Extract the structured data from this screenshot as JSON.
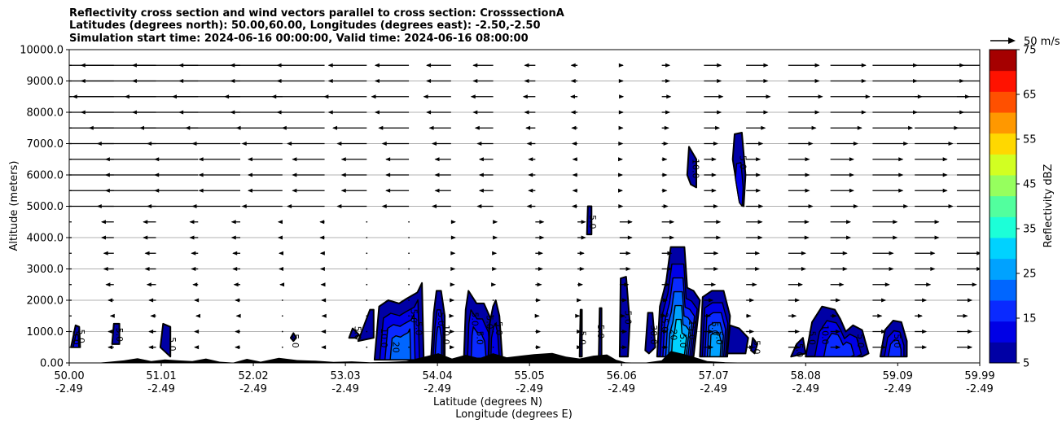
{
  "title_lines": [
    "Reflectivity cross section and wind vectors parallel to cross section: CrosssectionA",
    "Latitudes (degrees north): 50.00,60.00, Longitudes (degrees east): -2.50,-2.50",
    "Simulation start time: 2024-06-16 00:00:00, Valid time: 2024-06-16 08:00:00"
  ],
  "chart_data": {
    "type": "heatmap",
    "xlabel": "Latitude (degrees N)",
    "xlabel2": "Longitude (degrees E)",
    "ylabel": "Altitude (meters)",
    "xlim": [
      50.0,
      59.99
    ],
    "ylim": [
      0,
      10000
    ],
    "grid": "horizontal",
    "x_ticks": [
      {
        "lat": 50.0,
        "lat_label": "50.00",
        "lon_label": "-2.49"
      },
      {
        "lat": 51.01,
        "lat_label": "51.01",
        "lon_label": "-2.49"
      },
      {
        "lat": 52.02,
        "lat_label": "52.02",
        "lon_label": "-2.49"
      },
      {
        "lat": 53.03,
        "lat_label": "53.03",
        "lon_label": "-2.49"
      },
      {
        "lat": 54.04,
        "lat_label": "54.04",
        "lon_label": "-2.49"
      },
      {
        "lat": 55.05,
        "lat_label": "55.05",
        "lon_label": "-2.49"
      },
      {
        "lat": 56.06,
        "lat_label": "56.06",
        "lon_label": "-2.49"
      },
      {
        "lat": 57.07,
        "lat_label": "57.07",
        "lon_label": "-2.49"
      },
      {
        "lat": 58.08,
        "lat_label": "58.08",
        "lon_label": "-2.49"
      },
      {
        "lat": 59.09,
        "lat_label": "59.09",
        "lon_label": "-2.49"
      },
      {
        "lat": 59.99,
        "lat_label": "59.99",
        "lon_label": "-2.49"
      }
    ],
    "y_ticks": [
      {
        "value": 0,
        "label": "0.00"
      },
      {
        "value": 1000,
        "label": "1000.0"
      },
      {
        "value": 2000,
        "label": "2000.0"
      },
      {
        "value": 3000,
        "label": "3000.0"
      },
      {
        "value": 4000,
        "label": "4000.0"
      },
      {
        "value": 5000,
        "label": "5000.0"
      },
      {
        "value": 6000,
        "label": "6000.0"
      },
      {
        "value": 7000,
        "label": "7000.0"
      },
      {
        "value": 8000,
        "label": "8000.0"
      },
      {
        "value": 9000,
        "label": "9000.0"
      },
      {
        "value": 10000,
        "label": "10000.0"
      }
    ],
    "colorbar": {
      "label": "Reflectivity dBZ",
      "levels": [
        5,
        10,
        15,
        20,
        25,
        30,
        35,
        40,
        45,
        50,
        55,
        60,
        65,
        70,
        75
      ],
      "colors": [
        "#0000a5",
        "#0000e6",
        "#0a2aff",
        "#0066ff",
        "#00a2ff",
        "#00d2ff",
        "#1cffd8",
        "#52ff9e",
        "#96ff5e",
        "#d2ff22",
        "#ffd800",
        "#ff9800",
        "#ff5000",
        "#ff1200",
        "#a50000"
      ],
      "tick_labels": [
        "5",
        "15",
        "25",
        "35",
        "45",
        "55",
        "65",
        "75"
      ]
    },
    "wind_key": "50 m/s",
    "wind_profile": [
      {
        "alt": 500,
        "u": 3
      },
      {
        "alt": 1000,
        "u": 3
      },
      {
        "alt": 1500,
        "u": 2
      },
      {
        "alt": 2000,
        "u": 3
      },
      {
        "alt": 2500,
        "u": 4
      },
      {
        "alt": 3000,
        "u": 5
      },
      {
        "alt": 3500,
        "u": 5
      },
      {
        "alt": 4000,
        "u": 6
      },
      {
        "alt": 4500,
        "u": 6
      },
      {
        "alt": 5000,
        "u": 7
      },
      {
        "alt": 5500,
        "u": 6
      },
      {
        "alt": 6000,
        "u": 6
      },
      {
        "alt": 6500,
        "u": 6
      },
      {
        "alt": 7000,
        "u": 7
      },
      {
        "alt": 7500,
        "u": 8
      },
      {
        "alt": 8000,
        "u": 9
      },
      {
        "alt": 8500,
        "u": 10
      },
      {
        "alt": 9000,
        "u": 9
      },
      {
        "alt": 9500,
        "u": 9
      }
    ],
    "terrain": [
      [
        50.0,
        0
      ],
      [
        50.3,
        0
      ],
      [
        50.45,
        40
      ],
      [
        50.6,
        80
      ],
      [
        50.75,
        150
      ],
      [
        50.9,
        60
      ],
      [
        51.05,
        110
      ],
      [
        51.2,
        80
      ],
      [
        51.35,
        60
      ],
      [
        51.5,
        140
      ],
      [
        51.65,
        40
      ],
      [
        51.8,
        10
      ],
      [
        51.95,
        130
      ],
      [
        52.1,
        40
      ],
      [
        52.3,
        160
      ],
      [
        52.5,
        90
      ],
      [
        52.7,
        70
      ],
      [
        52.9,
        30
      ],
      [
        53.1,
        50
      ],
      [
        53.3,
        20
      ],
      [
        53.5,
        30
      ],
      [
        53.7,
        60
      ],
      [
        53.9,
        200
      ],
      [
        54.05,
        310
      ],
      [
        54.2,
        140
      ],
      [
        54.35,
        260
      ],
      [
        54.5,
        150
      ],
      [
        54.65,
        310
      ],
      [
        54.8,
        180
      ],
      [
        54.95,
        230
      ],
      [
        55.1,
        280
      ],
      [
        55.3,
        320
      ],
      [
        55.45,
        200
      ],
      [
        55.6,
        140
      ],
      [
        55.75,
        230
      ],
      [
        55.9,
        270
      ],
      [
        56.0,
        100
      ],
      [
        56.1,
        20
      ],
      [
        56.3,
        0
      ],
      [
        56.5,
        80
      ],
      [
        56.6,
        380
      ],
      [
        56.75,
        280
      ],
      [
        56.9,
        150
      ],
      [
        57.0,
        60
      ],
      [
        57.2,
        20
      ],
      [
        57.4,
        10
      ],
      [
        57.6,
        0
      ],
      [
        59.99,
        0
      ]
    ],
    "cells": [
      {
        "bins": [
          5,
          10
        ],
        "outline": [
          [
            50.02,
            500
          ],
          [
            50.07,
            1200
          ],
          [
            50.11,
            1150
          ],
          [
            50.12,
            500
          ]
        ]
      },
      {
        "bins": [
          5
        ],
        "outline": [
          [
            50.47,
            600
          ],
          [
            50.49,
            1250
          ],
          [
            50.55,
            1250
          ],
          [
            50.55,
            600
          ]
        ]
      },
      {
        "bins": [
          5
        ],
        "outline": [
          [
            51.0,
            500
          ],
          [
            51.03,
            1250
          ],
          [
            51.11,
            1150
          ],
          [
            51.11,
            200
          ]
        ]
      },
      {
        "bins": [
          5
        ],
        "outline": [
          [
            52.43,
            800
          ],
          [
            52.46,
            950
          ],
          [
            52.49,
            800
          ],
          [
            52.46,
            700
          ]
        ]
      },
      {
        "bins": [
          5
        ],
        "outline": [
          [
            53.07,
            800
          ],
          [
            53.11,
            1100
          ],
          [
            53.18,
            900
          ],
          [
            53.15,
            800
          ]
        ]
      },
      {
        "bins": [
          5
        ],
        "outline": [
          [
            53.17,
            700
          ],
          [
            53.3,
            1700
          ],
          [
            53.34,
            1700
          ],
          [
            53.34,
            800
          ]
        ]
      },
      {
        "bins": [
          5,
          10,
          15,
          20
        ],
        "outline": [
          [
            53.35,
            100
          ],
          [
            53.4,
            1800
          ],
          [
            53.5,
            2000
          ],
          [
            53.62,
            1900
          ],
          [
            53.7,
            2050
          ],
          [
            53.82,
            2250
          ],
          [
            53.87,
            2550
          ],
          [
            53.89,
            100
          ]
        ]
      },
      {
        "bins": [
          5,
          10,
          15
        ],
        "outline": [
          [
            53.97,
            150
          ],
          [
            54.0,
            1600
          ],
          [
            54.03,
            2300
          ],
          [
            54.08,
            2300
          ],
          [
            54.12,
            1500
          ],
          [
            54.12,
            150
          ]
        ]
      },
      {
        "bins": [
          5,
          10,
          15
        ],
        "outline": [
          [
            54.33,
            150
          ],
          [
            54.35,
            1700
          ],
          [
            54.38,
            2300
          ],
          [
            54.47,
            1900
          ],
          [
            54.55,
            1900
          ],
          [
            54.64,
            1300
          ],
          [
            54.67,
            150
          ]
        ]
      },
      {
        "bins": [
          5,
          10
        ],
        "outline": [
          [
            54.6,
            200
          ],
          [
            54.61,
            1200
          ],
          [
            54.65,
            1800
          ],
          [
            54.68,
            2000
          ],
          [
            54.72,
            1500
          ],
          [
            54.75,
            200
          ]
        ]
      },
      {
        "bins": [
          5
        ],
        "outline": [
          [
            55.6,
            200
          ],
          [
            55.61,
            1700
          ],
          [
            55.625,
            1700
          ],
          [
            55.625,
            200
          ]
        ]
      },
      {
        "bins": [
          5
        ],
        "outline": [
          [
            55.81,
            200
          ],
          [
            55.82,
            1750
          ],
          [
            55.84,
            1750
          ],
          [
            55.84,
            200
          ]
        ]
      },
      {
        "bins": [
          5
        ],
        "outline": [
          [
            56.04,
            200
          ],
          [
            56.05,
            2700
          ],
          [
            56.11,
            2750
          ],
          [
            56.15,
            1300
          ],
          [
            56.13,
            200
          ]
        ]
      },
      {
        "bins": [
          5
        ],
        "outline": [
          [
            56.32,
            400
          ],
          [
            56.35,
            1600
          ],
          [
            56.4,
            1600
          ],
          [
            56.43,
            500
          ],
          [
            56.36,
            300
          ]
        ]
      },
      {
        "bins": [
          5,
          10,
          15,
          20,
          25,
          30
        ],
        "outline": [
          [
            56.45,
            200
          ],
          [
            56.48,
            1800
          ],
          [
            56.55,
            2600
          ],
          [
            56.6,
            3700
          ],
          [
            56.75,
            3700
          ],
          [
            56.78,
            2400
          ],
          [
            56.85,
            2300
          ],
          [
            56.92,
            2000
          ],
          [
            56.85,
            200
          ]
        ]
      },
      {
        "bins": [
          5,
          10,
          15,
          20,
          25
        ],
        "outline": [
          [
            56.92,
            200
          ],
          [
            56.95,
            2100
          ],
          [
            57.05,
            2300
          ],
          [
            57.18,
            2300
          ],
          [
            57.25,
            1500
          ],
          [
            57.22,
            200
          ]
        ]
      },
      {
        "bins": [
          5
        ],
        "outline": [
          [
            57.22,
            300
          ],
          [
            57.25,
            1200
          ],
          [
            57.35,
            1100
          ],
          [
            57.45,
            800
          ],
          [
            57.42,
            300
          ]
        ]
      },
      {
        "bins": [
          5
        ],
        "outline": [
          [
            57.48,
            400
          ],
          [
            57.5,
            800
          ],
          [
            57.55,
            600
          ],
          [
            57.52,
            300
          ]
        ]
      },
      {
        "bins": [
          5
        ],
        "outline": [
          [
            56.78,
            6000
          ],
          [
            56.8,
            6900
          ],
          [
            56.88,
            6500
          ],
          [
            56.88,
            5600
          ],
          [
            56.82,
            5700
          ]
        ]
      },
      {
        "bins": [
          5,
          10
        ],
        "outline": [
          [
            57.28,
            6500
          ],
          [
            57.3,
            7300
          ],
          [
            57.38,
            7350
          ],
          [
            57.42,
            6000
          ],
          [
            57.4,
            5000
          ],
          [
            57.35,
            5200
          ]
        ]
      },
      {
        "bins": [
          5
        ],
        "outline": [
          [
            55.68,
            4100
          ],
          [
            55.69,
            5000
          ],
          [
            55.73,
            5000
          ],
          [
            55.73,
            4100
          ]
        ]
      },
      {
        "bins": [
          5
        ],
        "outline": [
          [
            57.92,
            200
          ],
          [
            57.98,
            600
          ],
          [
            58.05,
            800
          ],
          [
            58.08,
            300
          ]
        ]
      },
      {
        "bins": [
          5,
          10,
          15
        ],
        "outline": [
          [
            58.08,
            200
          ],
          [
            58.15,
            1300
          ],
          [
            58.26,
            1800
          ],
          [
            58.4,
            1700
          ],
          [
            58.46,
            1400
          ],
          [
            58.52,
            1000
          ],
          [
            58.6,
            1200
          ],
          [
            58.7,
            1050
          ],
          [
            58.77,
            300
          ],
          [
            58.7,
            200
          ]
        ]
      },
      {
        "bins": [
          5,
          10,
          15
        ],
        "outline": [
          [
            58.9,
            200
          ],
          [
            58.95,
            1050
          ],
          [
            59.04,
            1350
          ],
          [
            59.13,
            1300
          ],
          [
            59.19,
            700
          ],
          [
            59.19,
            200
          ]
        ]
      }
    ],
    "contour_labels": [
      "5.0",
      "5.0",
      "5.0",
      "5.0",
      "5.0",
      "5.0",
      "10.0",
      "20",
      "5.0",
      "5.0",
      "5.0",
      "10.0",
      "5.0",
      "5.0",
      "5.0",
      "5.0",
      "5.0",
      "5.0",
      "5.0",
      "30.0",
      "25.0",
      "20",
      "15.0",
      "5.0",
      "5.0",
      "5.0",
      "10.0",
      "5.0",
      "5.0",
      "5.0",
      "5.0",
      "5.0",
      "10.0",
      "5.0",
      "5.0"
    ]
  }
}
